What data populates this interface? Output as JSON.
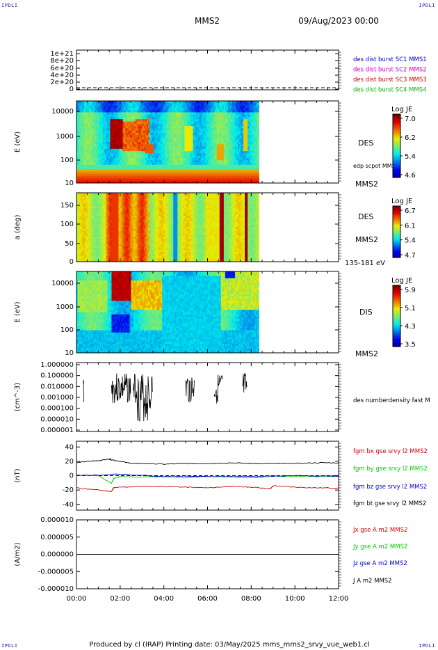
{
  "corner_label": "IPDLI",
  "header": {
    "spacecraft": "MMS2",
    "datetime": "09/Aug/2023 00:00"
  },
  "footer": "Produced by cl (IRAP)   Printing date: 03/May/2025   mms_mms2_srvy_vue_web1.cl",
  "time_axis": {
    "ticks": [
      "00:00",
      "02:00",
      "04:00",
      "06:00",
      "08:00",
      "10:00",
      "12:00"
    ],
    "range_hours": [
      0,
      12
    ],
    "data_end_hours": 8.35
  },
  "chart_data": [
    {
      "type": "line",
      "id": "dist_burst",
      "ylabel": "",
      "ylim": [
        0,
        1.1e+21
      ],
      "ytick_labels": [
        "1e+21",
        "8e+20",
        "6e+20",
        "4e+20",
        "2e+20",
        "0"
      ],
      "dashed_zero": true,
      "legend": [
        {
          "label": "des dist burst SC1 MMS1",
          "color": "#0000cc"
        },
        {
          "label": "des dist burst SC2 MMS2",
          "color": "#cc00cc"
        },
        {
          "label": "des dist burst SC3 MMS3",
          "color": "#cc0000"
        },
        {
          "label": "des dist burst SC4 MMS4",
          "color": "#00bb00"
        }
      ]
    },
    {
      "type": "heatmap",
      "id": "des_energy",
      "ylabel": "E (eV)",
      "yscale": "log",
      "ylim": [
        10,
        30000
      ],
      "ytick_labels": [
        "10000",
        "1000",
        "100",
        "10"
      ],
      "instrument": "DES",
      "side_label": "edp scpot MMS2",
      "spacecraft": "MMS2",
      "colorbar": {
        "title": "Log JE",
        "ticks": [
          "7.0",
          "6.2",
          "5.4",
          "4.6"
        ],
        "min": 4.6,
        "max": 7.2
      }
    },
    {
      "type": "heatmap",
      "id": "des_pitch",
      "ylabel": "a (deg)",
      "ylim": [
        0,
        180
      ],
      "ytick_labels": [
        "150",
        "100",
        "50",
        "0"
      ],
      "instrument": "DES",
      "spacecraft": "MMS2",
      "energy_range": "135-181 eV",
      "colorbar": {
        "title": "Log JE",
        "ticks": [
          "6.7",
          "6.1",
          "5.4",
          "4.7"
        ],
        "min": 4.7,
        "max": 6.9
      }
    },
    {
      "type": "heatmap",
      "id": "dis_energy",
      "ylabel": "E (eV)",
      "yscale": "log",
      "ylim": [
        10,
        30000
      ],
      "ytick_labels": [
        "10000",
        "1000",
        "100",
        "10"
      ],
      "instrument": "DIS",
      "spacecraft": "MMS2",
      "colorbar": {
        "title": "Log JE",
        "ticks": [
          "5.9",
          "5.1",
          "4.3",
          "3.5"
        ],
        "min": 3.5,
        "max": 6.2
      }
    },
    {
      "type": "line",
      "id": "density",
      "ylabel": "(cm^-3)",
      "yscale": "log",
      "ylim": [
        1e-06,
        1.0
      ],
      "ytick_labels": [
        "1.000000",
        "0.100000",
        "0.010000",
        "0.001000",
        "0.000100",
        "0.000010",
        "0.000001"
      ],
      "legend": [
        {
          "label": "des numberdensity fast M",
          "color": "#000000"
        }
      ]
    },
    {
      "type": "line",
      "id": "bfield",
      "ylabel": "(nT)",
      "ylim": [
        -48,
        48
      ],
      "ytick_labels": [
        "40",
        "20",
        "0",
        "-20",
        "-40"
      ],
      "series": [
        {
          "name": "fgm bx gse srvy l2 MMS2",
          "color": "#cc0000",
          "x": [
            0,
            1,
            1.6,
            1.7,
            2,
            3,
            4,
            5,
            6,
            7,
            8,
            8.9,
            9,
            10,
            11,
            12
          ],
          "values": [
            -17,
            -20,
            -22,
            -17,
            -16,
            -15,
            -15,
            -16,
            -17,
            -15,
            -16,
            -18,
            -14,
            -16,
            -17,
            -17
          ]
        },
        {
          "name": "fgm by gse srvy l2 MMS2",
          "color": "#00cc00",
          "x": [
            0,
            1,
            1.6,
            1.7,
            2,
            3,
            4,
            5,
            6,
            7,
            8,
            9,
            10,
            11,
            12
          ],
          "values": [
            1,
            0,
            -11,
            -4,
            -1,
            -2,
            -1,
            -3,
            -1,
            -2,
            -3,
            -1,
            -1,
            -1,
            -1
          ]
        },
        {
          "name": "fgm bz gse srvy l2 MMS2",
          "color": "#0000cc",
          "x": [
            0,
            2,
            4,
            6,
            8,
            10,
            12
          ],
          "values": [
            0,
            2,
            -1,
            -1,
            -1,
            0,
            -1
          ]
        },
        {
          "name": "fgm bt gse srvy l2 MMS2",
          "color": "#000000",
          "x": [
            0,
            0.5,
            1,
            1.5,
            1.6,
            2,
            2.5,
            3,
            4,
            5,
            6,
            7,
            8,
            9,
            10,
            11,
            12
          ],
          "values": [
            18,
            20,
            21,
            23,
            22,
            20,
            17,
            17,
            16,
            17,
            17,
            18,
            17,
            17,
            17,
            18,
            18
          ]
        }
      ]
    },
    {
      "type": "line",
      "id": "current",
      "ylabel": "(A/m2)",
      "ylim": [
        -1e-05,
        1e-05
      ],
      "ytick_labels": [
        "0.000010",
        "0.000005",
        "0.000000",
        "-0.000005",
        "-0.000010"
      ],
      "series": [
        {
          "name": "Jx gse A m2 MMS2",
          "color": "#cc0000",
          "x": [
            0,
            12
          ],
          "values": [
            0,
            0
          ]
        },
        {
          "name": "Jy gse A m2 MMS2",
          "color": "#00cc00",
          "x": [
            0,
            12
          ],
          "values": [
            0,
            0
          ]
        },
        {
          "name": "Jz gse A m2 MMS2",
          "color": "#0000cc",
          "x": [
            0,
            12
          ],
          "values": [
            0,
            0
          ]
        },
        {
          "name": "J A m2 MMS2",
          "color": "#000000",
          "x": [
            0,
            12
          ],
          "values": [
            0,
            0
          ]
        }
      ]
    }
  ]
}
